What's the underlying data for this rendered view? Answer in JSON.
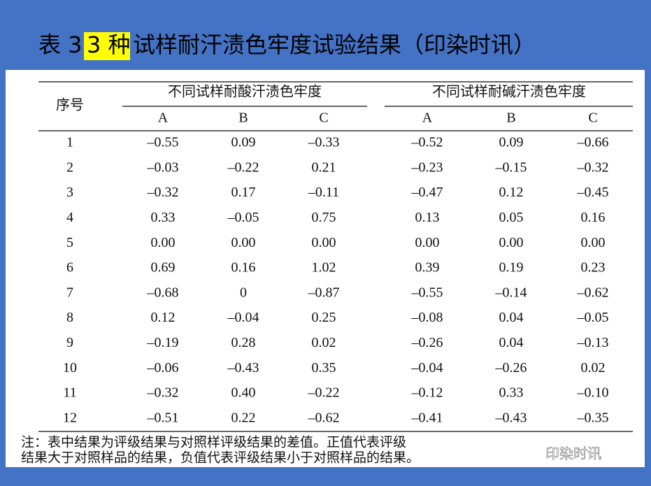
{
  "title": {
    "prefix": "表 3 ",
    "highlight": "3 种",
    "rest": "试样耐汗渍色牢度试验结果（印染时讯）"
  },
  "table": {
    "row_header": "序号",
    "groups": [
      "不同试样耐酸汗渍色牢度",
      "不同试样耐碱汗渍色牢度"
    ],
    "subheaders": [
      "A",
      "B",
      "C",
      "A",
      "B",
      "C"
    ],
    "rows": [
      [
        "1",
        "–0.55",
        "0.09",
        "–0.33",
        "–0.52",
        "0.09",
        "–0.66"
      ],
      [
        "2",
        "–0.03",
        "–0.22",
        "0.21",
        "–0.23",
        "–0.15",
        "–0.32"
      ],
      [
        "3",
        "–0.32",
        "0.17",
        "–0.11",
        "–0.47",
        "0.12",
        "–0.45"
      ],
      [
        "4",
        "0.33",
        "–0.05",
        "0.75",
        "0.13",
        "0.05",
        "0.16"
      ],
      [
        "5",
        "0.00",
        "0.00",
        "0.00",
        "0.00",
        "0.00",
        "0.00"
      ],
      [
        "6",
        "0.69",
        "0.16",
        "1.02",
        "0.39",
        "0.19",
        "0.23"
      ],
      [
        "7",
        "–0.68",
        "0",
        "–0.87",
        "–0.55",
        "–0.14",
        "–0.62"
      ],
      [
        "8",
        "0.12",
        "–0.04",
        "0.25",
        "–0.08",
        "0.04",
        "–0.05"
      ],
      [
        "9",
        "–0.19",
        "0.28",
        "0.02",
        "–0.26",
        "0.04",
        "–0.13"
      ],
      [
        "10",
        "–0.06",
        "–0.43",
        "0.35",
        "–0.04",
        "–0.26",
        "0.02"
      ],
      [
        "11",
        "–0.32",
        "0.40",
        "–0.22",
        "–0.12",
        "0.33",
        "–0.10"
      ],
      [
        "12",
        "–0.51",
        "0.22",
        "–0.62",
        "–0.41",
        "–0.43",
        "–0.35"
      ]
    ],
    "note": [
      "注：表中结果为评级结果与对照样评级结果的差值。正值代表评级",
      "结果大于对照样品的结果，负值代表评级结果小于对照样品的结果。"
    ]
  },
  "watermark": "印染时讯"
}
